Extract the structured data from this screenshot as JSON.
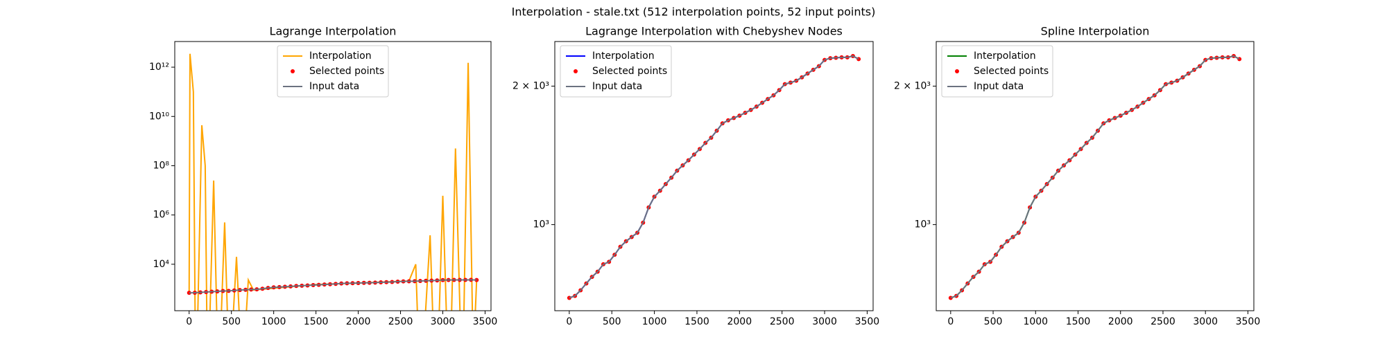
{
  "title": "Interpolation - stale.txt (512 interpolation points, 52 input points)",
  "chart_data": [
    {
      "type": "line",
      "title": "Lagrange Interpolation",
      "legend": "upper center",
      "yscale": "log",
      "x": [
        0,
        67,
        133,
        200,
        267,
        333,
        400,
        467,
        533,
        600,
        667,
        733,
        800,
        867,
        933,
        1000,
        1067,
        1133,
        1200,
        1267,
        1333,
        1400,
        1467,
        1533,
        1600,
        1667,
        1733,
        1800,
        1867,
        1933,
        2000,
        2067,
        2133,
        2200,
        2267,
        2333,
        2400,
        2467,
        2533,
        2600,
        2667,
        2733,
        2800,
        2867,
        2933,
        3000,
        3067,
        3133,
        3200,
        3267,
        3333,
        3400
      ],
      "xlim": [
        -170,
        3570
      ],
      "xticks": [
        0,
        500,
        1000,
        1500,
        2000,
        2500,
        3000,
        3500
      ],
      "ylim": [
        130,
        11000000000000
      ],
      "yticks": [
        {
          "value": 10000,
          "label": "10⁴"
        },
        {
          "value": 1000000,
          "label": "10⁶"
        },
        {
          "value": 100000000,
          "label": "10⁸"
        },
        {
          "value": 10000000000,
          "label": "10¹⁰"
        },
        {
          "value": 1000000000000,
          "label": "10¹²"
        }
      ],
      "series": [
        {
          "name": "Interpolation",
          "color": "#ffa500",
          "style": "line",
          "x": [
            0,
            10,
            50,
            75,
            90,
            150,
            190,
            215,
            230,
            290,
            340,
            360,
            420,
            470,
            490,
            560,
            620,
            640,
            700,
            760,
            1500,
            2000,
            2600,
            2680,
            2720,
            2760,
            2850,
            2900,
            2940,
            3000,
            3060,
            3090,
            3150,
            3220,
            3240,
            3300,
            3360,
            3400
          ],
          "values": [
            693,
            3500000000000,
            100000000000,
            1,
            1,
            4400000000,
            100000000,
            1,
            1,
            25000000,
            1,
            1,
            500000,
            1,
            1,
            20000,
            1,
            1,
            2300,
            900,
            1505,
            1725,
            2100,
            10000,
            1,
            1,
            150000,
            1,
            1,
            6000000,
            1,
            1,
            500000000,
            1,
            1,
            1500000000000,
            1,
            2290
          ]
        },
        {
          "name": "Selected points",
          "color": "#ff0000",
          "style": "points",
          "values": [
            693,
            700,
            720,
            745,
            770,
            790,
            820,
            830,
            860,
            895,
            920,
            940,
            960,
            1010,
            1090,
            1150,
            1185,
            1225,
            1265,
            1310,
            1345,
            1380,
            1420,
            1460,
            1505,
            1545,
            1600,
            1660,
            1685,
            1705,
            1725,
            1750,
            1775,
            1805,
            1840,
            1875,
            1910,
            1960,
            2020,
            2035,
            2055,
            2090,
            2130,
            2170,
            2210,
            2280,
            2300,
            2305,
            2310,
            2310,
            2325,
            2290
          ]
        },
        {
          "name": "Input data",
          "color": "#6b7280",
          "style": "line",
          "values": [
            693,
            700,
            720,
            745,
            770,
            790,
            820,
            830,
            860,
            895,
            920,
            940,
            960,
            1010,
            1090,
            1150,
            1185,
            1225,
            1265,
            1310,
            1345,
            1380,
            1420,
            1460,
            1505,
            1545,
            1600,
            1660,
            1685,
            1705,
            1725,
            1750,
            1775,
            1805,
            1840,
            1875,
            1910,
            1960,
            2020,
            2035,
            2055,
            2090,
            2130,
            2170,
            2210,
            2280,
            2300,
            2305,
            2310,
            2310,
            2325,
            2290
          ]
        }
      ]
    },
    {
      "type": "line",
      "title": "Lagrange Interpolation with Chebyshev Nodes",
      "legend": "upper left",
      "yscale": "log",
      "x": [
        0,
        67,
        133,
        200,
        267,
        333,
        400,
        467,
        533,
        600,
        667,
        733,
        800,
        867,
        933,
        1000,
        1067,
        1133,
        1200,
        1267,
        1333,
        1400,
        1467,
        1533,
        1600,
        1667,
        1733,
        1800,
        1867,
        1933,
        2000,
        2067,
        2133,
        2200,
        2267,
        2333,
        2400,
        2467,
        2533,
        2600,
        2667,
        2733,
        2800,
        2867,
        2933,
        3000,
        3067,
        3133,
        3200,
        3267,
        3333,
        3400
      ],
      "xlim": [
        -170,
        3570
      ],
      "xticks": [
        0,
        500,
        1000,
        1500,
        2000,
        2500,
        3000,
        3500
      ],
      "ylim": [
        650,
        2500
      ],
      "yticks": [
        {
          "value": 1000,
          "label": "10³"
        },
        {
          "value": 2000,
          "label": "2 × 10³"
        }
      ],
      "series": [
        {
          "name": "Interpolation",
          "color": "#0000ff",
          "style": "line",
          "values": [
            693,
            700,
            720,
            745,
            770,
            790,
            820,
            830,
            860,
            895,
            920,
            940,
            960,
            1010,
            1090,
            1150,
            1185,
            1225,
            1265,
            1310,
            1345,
            1380,
            1420,
            1460,
            1505,
            1545,
            1600,
            1660,
            1685,
            1705,
            1725,
            1750,
            1775,
            1805,
            1840,
            1875,
            1910,
            1960,
            2020,
            2035,
            2055,
            2090,
            2130,
            2170,
            2210,
            2280,
            2300,
            2305,
            2310,
            2310,
            2325,
            2290
          ]
        },
        {
          "name": "Selected points",
          "color": "#ff0000",
          "style": "points",
          "values": [
            693,
            700,
            720,
            745,
            770,
            790,
            820,
            830,
            860,
            895,
            920,
            940,
            960,
            1010,
            1090,
            1150,
            1185,
            1225,
            1265,
            1310,
            1345,
            1380,
            1420,
            1460,
            1505,
            1545,
            1600,
            1660,
            1685,
            1705,
            1725,
            1750,
            1775,
            1805,
            1840,
            1875,
            1910,
            1960,
            2020,
            2035,
            2055,
            2090,
            2130,
            2170,
            2210,
            2280,
            2300,
            2305,
            2310,
            2310,
            2325,
            2290
          ]
        },
        {
          "name": "Input data",
          "color": "#6b7280",
          "style": "line",
          "values": [
            693,
            700,
            720,
            745,
            770,
            790,
            820,
            830,
            860,
            895,
            920,
            940,
            960,
            1010,
            1090,
            1150,
            1185,
            1225,
            1265,
            1310,
            1345,
            1380,
            1420,
            1460,
            1505,
            1545,
            1600,
            1660,
            1685,
            1705,
            1725,
            1750,
            1775,
            1805,
            1840,
            1875,
            1910,
            1960,
            2020,
            2035,
            2055,
            2090,
            2130,
            2170,
            2210,
            2280,
            2300,
            2305,
            2310,
            2310,
            2325,
            2290
          ]
        }
      ]
    },
    {
      "type": "line",
      "title": "Spline Interpolation",
      "legend": "upper left",
      "yscale": "log",
      "x": [
        0,
        67,
        133,
        200,
        267,
        333,
        400,
        467,
        533,
        600,
        667,
        733,
        800,
        867,
        933,
        1000,
        1067,
        1133,
        1200,
        1267,
        1333,
        1400,
        1467,
        1533,
        1600,
        1667,
        1733,
        1800,
        1867,
        1933,
        2000,
        2067,
        2133,
        2200,
        2267,
        2333,
        2400,
        2467,
        2533,
        2600,
        2667,
        2733,
        2800,
        2867,
        2933,
        3000,
        3067,
        3133,
        3200,
        3267,
        3333,
        3400
      ],
      "xlim": [
        -170,
        3570
      ],
      "xticks": [
        0,
        500,
        1000,
        1500,
        2000,
        2500,
        3000,
        3500
      ],
      "ylim": [
        650,
        2500
      ],
      "yticks": [
        {
          "value": 1000,
          "label": "10³"
        },
        {
          "value": 2000,
          "label": "2 × 10³"
        }
      ],
      "series": [
        {
          "name": "Interpolation",
          "color": "#008000",
          "style": "line",
          "values": [
            693,
            700,
            720,
            745,
            770,
            790,
            820,
            830,
            860,
            895,
            920,
            940,
            960,
            1010,
            1090,
            1150,
            1185,
            1225,
            1265,
            1310,
            1345,
            1380,
            1420,
            1460,
            1505,
            1545,
            1600,
            1660,
            1685,
            1705,
            1725,
            1750,
            1775,
            1805,
            1840,
            1875,
            1910,
            1960,
            2020,
            2035,
            2055,
            2090,
            2130,
            2170,
            2210,
            2280,
            2300,
            2305,
            2310,
            2310,
            2325,
            2290
          ]
        },
        {
          "name": "Selected points",
          "color": "#ff0000",
          "style": "points",
          "values": [
            693,
            700,
            720,
            745,
            770,
            790,
            820,
            830,
            860,
            895,
            920,
            940,
            960,
            1010,
            1090,
            1150,
            1185,
            1225,
            1265,
            1310,
            1345,
            1380,
            1420,
            1460,
            1505,
            1545,
            1600,
            1660,
            1685,
            1705,
            1725,
            1750,
            1775,
            1805,
            1840,
            1875,
            1910,
            1960,
            2020,
            2035,
            2055,
            2090,
            2130,
            2170,
            2210,
            2280,
            2300,
            2305,
            2310,
            2310,
            2325,
            2290
          ]
        },
        {
          "name": "Input data",
          "color": "#6b7280",
          "style": "line",
          "values": [
            693,
            700,
            720,
            745,
            770,
            790,
            820,
            830,
            860,
            895,
            920,
            940,
            960,
            1010,
            1090,
            1150,
            1185,
            1225,
            1265,
            1310,
            1345,
            1380,
            1420,
            1460,
            1505,
            1545,
            1600,
            1660,
            1685,
            1705,
            1725,
            1750,
            1775,
            1805,
            1840,
            1875,
            1910,
            1960,
            2020,
            2035,
            2055,
            2090,
            2130,
            2170,
            2210,
            2280,
            2300,
            2305,
            2310,
            2310,
            2325,
            2290
          ]
        }
      ]
    }
  ]
}
